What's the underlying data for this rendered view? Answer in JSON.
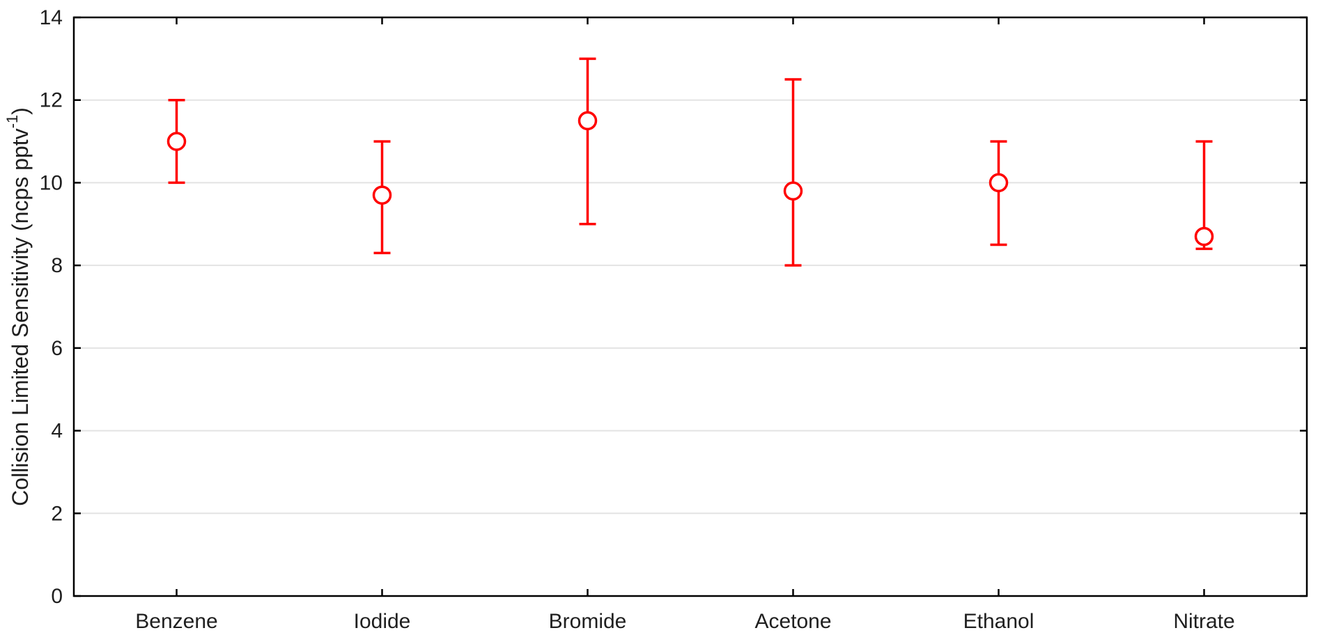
{
  "chart_data": {
    "type": "scatter",
    "subtype": "errorbar",
    "title": "",
    "categories": [
      "Benzene",
      "Iodide",
      "Bromide",
      "Acetone",
      "Ethanol",
      "Nitrate"
    ],
    "values": [
      11,
      9.7,
      11.5,
      9.8,
      10,
      8.7
    ],
    "error_low": [
      10,
      8.3,
      9,
      8,
      8.5,
      8.4
    ],
    "error_high": [
      12,
      11,
      13,
      12.5,
      11,
      11
    ],
    "xlabel": "",
    "ylabel": "Collision Limited Sensitivity (ncps pptv⁻¹)",
    "ylabel_main": "Collision Limited Sensitivity (ncps pptv",
    "ylabel_superscript": "-1",
    "ylabel_suffix": ")",
    "ylim": [
      0,
      14
    ],
    "yticks": [
      0,
      2,
      4,
      6,
      8,
      10,
      12,
      14
    ],
    "grid": "horizontal",
    "legend": "none",
    "marker": "open-circle",
    "series_color": "#ff0000",
    "axis_color": "#000000",
    "grid_color": "#e3e3e3",
    "text_color": "#1f1f1f",
    "background_color": "#ffffff"
  }
}
